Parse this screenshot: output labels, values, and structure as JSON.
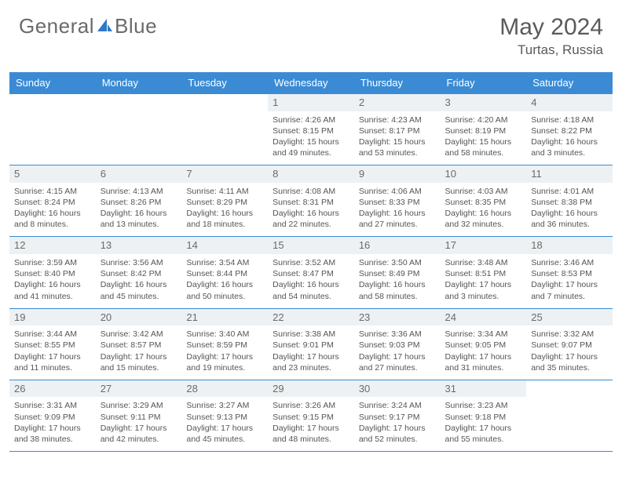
{
  "brand": {
    "part1": "General",
    "part2": "Blue"
  },
  "colors": {
    "header_bg": "#3b8bd4",
    "border": "#3b8bd4",
    "daynum_bg": "#eef1f3",
    "text": "#555555",
    "logo_text": "#6a6a6a",
    "logo_accent": "#2f78c7"
  },
  "title": "May 2024",
  "location": "Turtas, Russia",
  "day_headers": [
    "Sunday",
    "Monday",
    "Tuesday",
    "Wednesday",
    "Thursday",
    "Friday",
    "Saturday"
  ],
  "weeks": [
    [
      null,
      null,
      null,
      {
        "n": "1",
        "sr": "4:26 AM",
        "ss": "8:15 PM",
        "dl": "15 hours and 49 minutes."
      },
      {
        "n": "2",
        "sr": "4:23 AM",
        "ss": "8:17 PM",
        "dl": "15 hours and 53 minutes."
      },
      {
        "n": "3",
        "sr": "4:20 AM",
        "ss": "8:19 PM",
        "dl": "15 hours and 58 minutes."
      },
      {
        "n": "4",
        "sr": "4:18 AM",
        "ss": "8:22 PM",
        "dl": "16 hours and 3 minutes."
      }
    ],
    [
      {
        "n": "5",
        "sr": "4:15 AM",
        "ss": "8:24 PM",
        "dl": "16 hours and 8 minutes."
      },
      {
        "n": "6",
        "sr": "4:13 AM",
        "ss": "8:26 PM",
        "dl": "16 hours and 13 minutes."
      },
      {
        "n": "7",
        "sr": "4:11 AM",
        "ss": "8:29 PM",
        "dl": "16 hours and 18 minutes."
      },
      {
        "n": "8",
        "sr": "4:08 AM",
        "ss": "8:31 PM",
        "dl": "16 hours and 22 minutes."
      },
      {
        "n": "9",
        "sr": "4:06 AM",
        "ss": "8:33 PM",
        "dl": "16 hours and 27 minutes."
      },
      {
        "n": "10",
        "sr": "4:03 AM",
        "ss": "8:35 PM",
        "dl": "16 hours and 32 minutes."
      },
      {
        "n": "11",
        "sr": "4:01 AM",
        "ss": "8:38 PM",
        "dl": "16 hours and 36 minutes."
      }
    ],
    [
      {
        "n": "12",
        "sr": "3:59 AM",
        "ss": "8:40 PM",
        "dl": "16 hours and 41 minutes."
      },
      {
        "n": "13",
        "sr": "3:56 AM",
        "ss": "8:42 PM",
        "dl": "16 hours and 45 minutes."
      },
      {
        "n": "14",
        "sr": "3:54 AM",
        "ss": "8:44 PM",
        "dl": "16 hours and 50 minutes."
      },
      {
        "n": "15",
        "sr": "3:52 AM",
        "ss": "8:47 PM",
        "dl": "16 hours and 54 minutes."
      },
      {
        "n": "16",
        "sr": "3:50 AM",
        "ss": "8:49 PM",
        "dl": "16 hours and 58 minutes."
      },
      {
        "n": "17",
        "sr": "3:48 AM",
        "ss": "8:51 PM",
        "dl": "17 hours and 3 minutes."
      },
      {
        "n": "18",
        "sr": "3:46 AM",
        "ss": "8:53 PM",
        "dl": "17 hours and 7 minutes."
      }
    ],
    [
      {
        "n": "19",
        "sr": "3:44 AM",
        "ss": "8:55 PM",
        "dl": "17 hours and 11 minutes."
      },
      {
        "n": "20",
        "sr": "3:42 AM",
        "ss": "8:57 PM",
        "dl": "17 hours and 15 minutes."
      },
      {
        "n": "21",
        "sr": "3:40 AM",
        "ss": "8:59 PM",
        "dl": "17 hours and 19 minutes."
      },
      {
        "n": "22",
        "sr": "3:38 AM",
        "ss": "9:01 PM",
        "dl": "17 hours and 23 minutes."
      },
      {
        "n": "23",
        "sr": "3:36 AM",
        "ss": "9:03 PM",
        "dl": "17 hours and 27 minutes."
      },
      {
        "n": "24",
        "sr": "3:34 AM",
        "ss": "9:05 PM",
        "dl": "17 hours and 31 minutes."
      },
      {
        "n": "25",
        "sr": "3:32 AM",
        "ss": "9:07 PM",
        "dl": "17 hours and 35 minutes."
      }
    ],
    [
      {
        "n": "26",
        "sr": "3:31 AM",
        "ss": "9:09 PM",
        "dl": "17 hours and 38 minutes."
      },
      {
        "n": "27",
        "sr": "3:29 AM",
        "ss": "9:11 PM",
        "dl": "17 hours and 42 minutes."
      },
      {
        "n": "28",
        "sr": "3:27 AM",
        "ss": "9:13 PM",
        "dl": "17 hours and 45 minutes."
      },
      {
        "n": "29",
        "sr": "3:26 AM",
        "ss": "9:15 PM",
        "dl": "17 hours and 48 minutes."
      },
      {
        "n": "30",
        "sr": "3:24 AM",
        "ss": "9:17 PM",
        "dl": "17 hours and 52 minutes."
      },
      {
        "n": "31",
        "sr": "3:23 AM",
        "ss": "9:18 PM",
        "dl": "17 hours and 55 minutes."
      },
      null
    ]
  ],
  "labels": {
    "sunrise": "Sunrise: ",
    "sunset": "Sunset: ",
    "daylight": "Daylight: "
  }
}
